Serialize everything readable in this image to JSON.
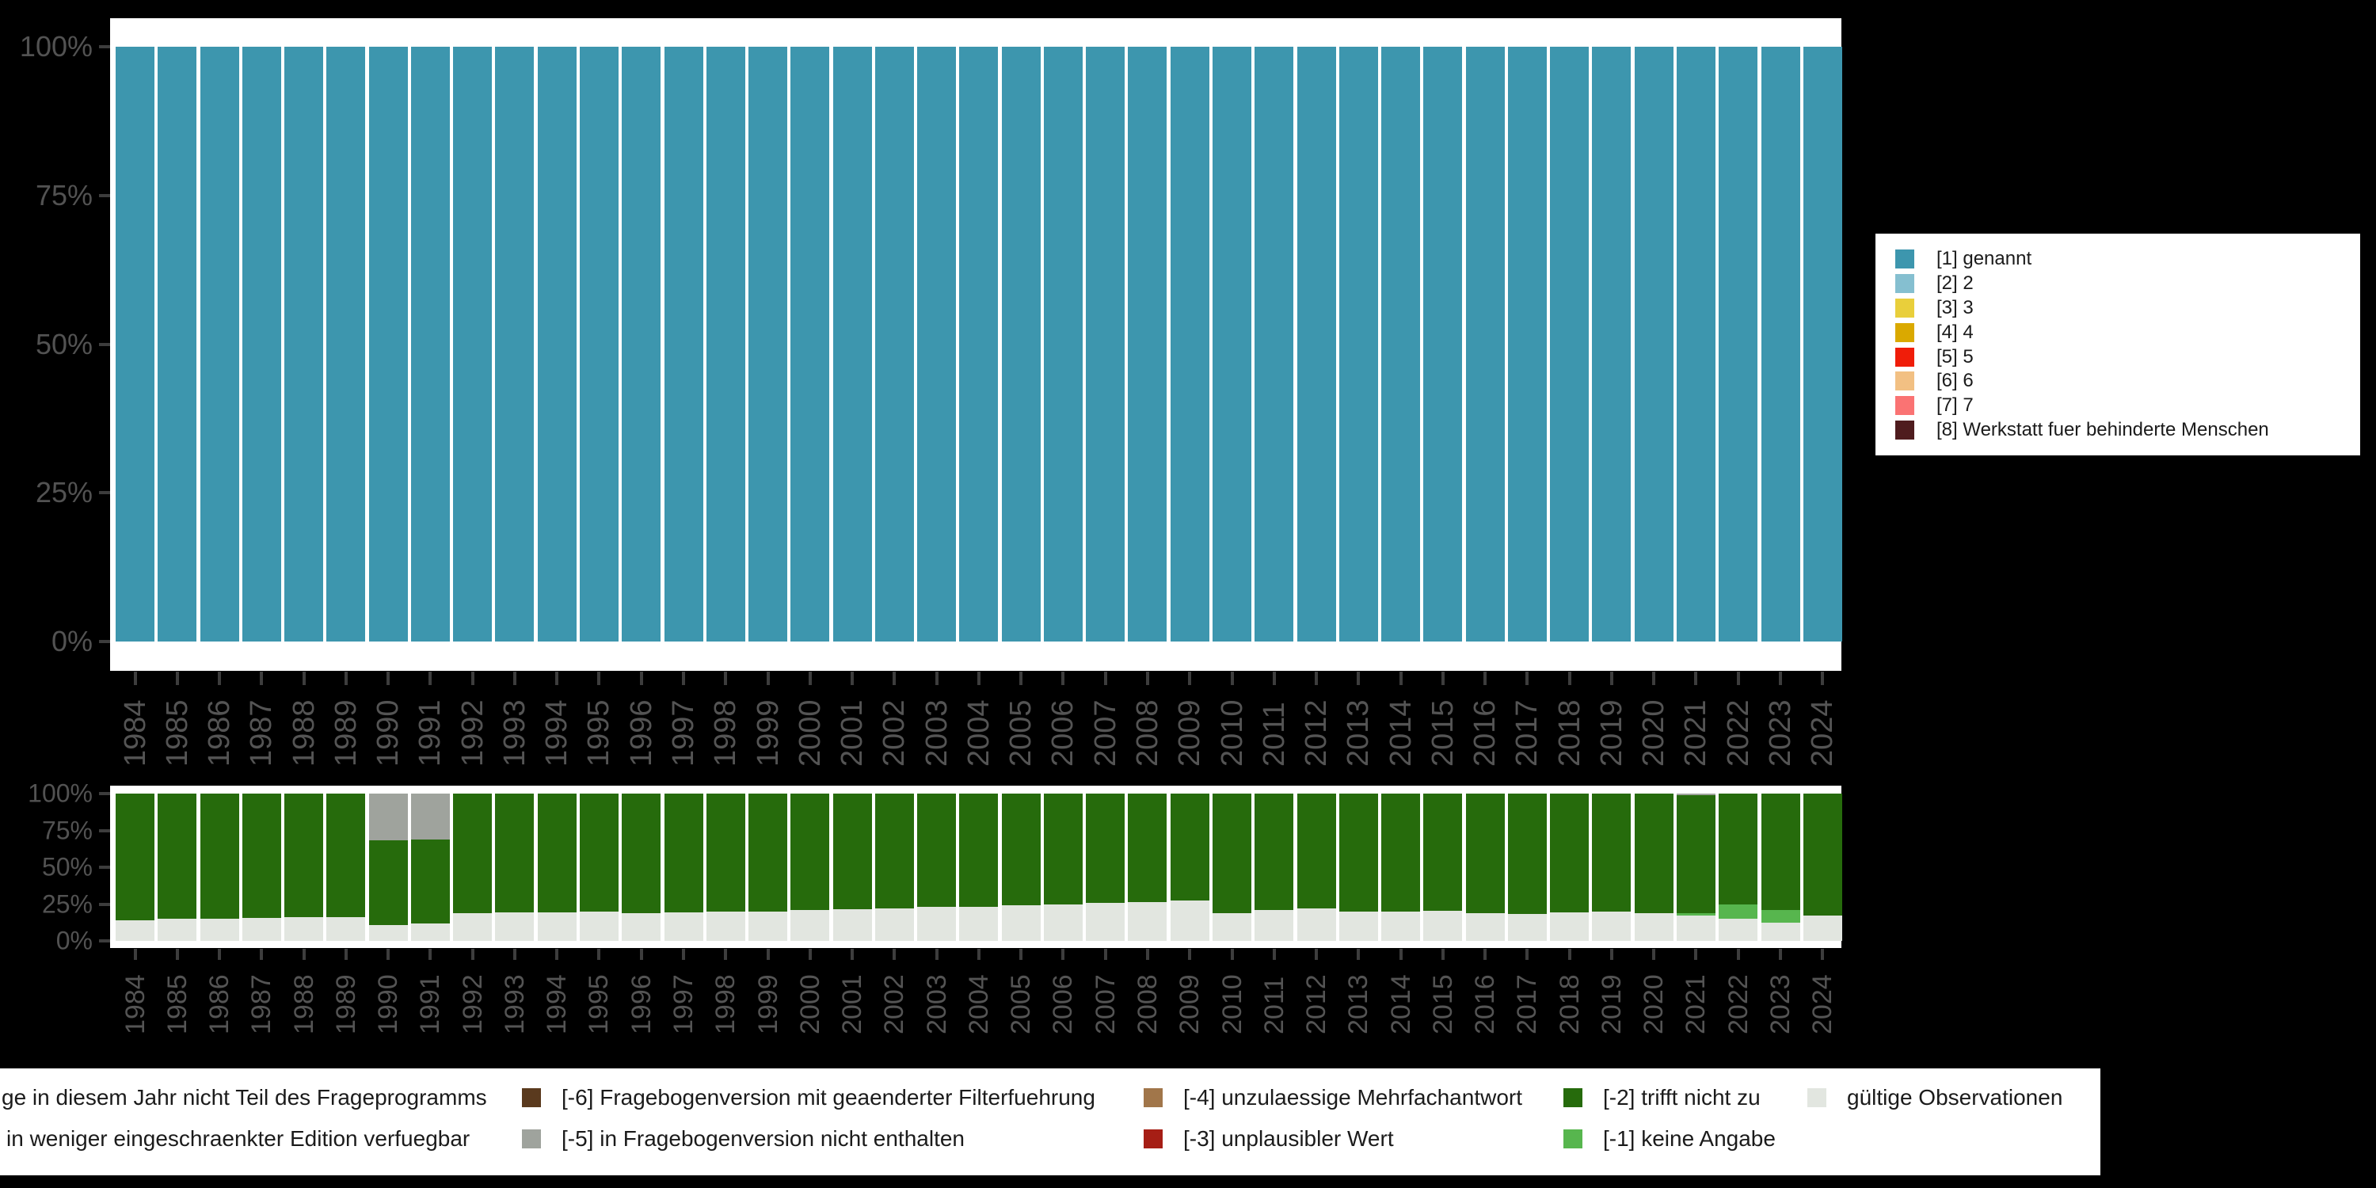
{
  "figure": {
    "background_color": "#000000",
    "panel_color": "#ffffff",
    "axis_text_color": "#525252",
    "tick_color": "#3d3d3d"
  },
  "chart_data": [
    {
      "type": "bar",
      "stacked": true,
      "title": "",
      "xlabel": "",
      "ylabel": "",
      "ylim": [
        0,
        100
      ],
      "grid": false,
      "legend_position": "right",
      "yticks": [
        "0%",
        "25%",
        "50%",
        "75%",
        "100%"
      ],
      "ytick_values": [
        0,
        25,
        50,
        75,
        100
      ],
      "categories": [
        "1984",
        "1985",
        "1986",
        "1987",
        "1988",
        "1989",
        "1990",
        "1991",
        "1992",
        "1993",
        "1994",
        "1995",
        "1996",
        "1997",
        "1998",
        "1999",
        "2000",
        "2001",
        "2002",
        "2003",
        "2004",
        "2005",
        "2006",
        "2007",
        "2008",
        "2009",
        "2010",
        "2011",
        "2012",
        "2013",
        "2014",
        "2015",
        "2016",
        "2017",
        "2018",
        "2019",
        "2020",
        "2021",
        "2022",
        "2023",
        "2024"
      ],
      "series": [
        {
          "name": "[1] genannt",
          "color": "#3d96ae",
          "values": [
            100,
            100,
            100,
            100,
            100,
            100,
            100,
            100,
            100,
            100,
            100,
            100,
            100,
            100,
            100,
            100,
            100,
            100,
            100,
            100,
            100,
            100,
            100,
            100,
            100,
            100,
            100,
            100,
            100,
            100,
            100,
            100,
            100,
            100,
            100,
            100,
            100,
            100,
            100,
            100,
            100
          ]
        }
      ]
    },
    {
      "type": "bar",
      "stacked": true,
      "title": "",
      "xlabel": "",
      "ylabel": "",
      "ylim": [
        0,
        100
      ],
      "grid": false,
      "legend_position": "bottom",
      "yticks": [
        "0%",
        "25%",
        "50%",
        "75%",
        "100%"
      ],
      "ytick_values": [
        0,
        25,
        50,
        75,
        100
      ],
      "categories": [
        "1984",
        "1985",
        "1986",
        "1987",
        "1988",
        "1989",
        "1990",
        "1991",
        "1992",
        "1993",
        "1994",
        "1995",
        "1996",
        "1997",
        "1998",
        "1999",
        "2000",
        "2001",
        "2002",
        "2003",
        "2004",
        "2005",
        "2006",
        "2007",
        "2008",
        "2009",
        "2010",
        "2011",
        "2012",
        "2013",
        "2014",
        "2015",
        "2016",
        "2017",
        "2018",
        "2019",
        "2020",
        "2021",
        "2022",
        "2023",
        "2024"
      ],
      "series": [
        {
          "name": "gültige Observationen",
          "color": "#e2e6e0",
          "values": [
            14,
            15,
            15,
            15.5,
            16,
            16,
            11,
            12,
            19,
            19.5,
            19.5,
            20,
            19,
            19.5,
            20,
            20,
            21,
            21.5,
            22,
            23,
            23,
            24,
            25,
            26,
            26.5,
            27.5,
            19,
            21,
            22,
            20,
            20,
            20.5,
            19,
            18.5,
            19.5,
            20,
            19,
            17,
            15,
            12.5,
            17
          ]
        },
        {
          "name": "[-1] keine Angabe",
          "color": "#57b64e",
          "values": [
            0,
            0,
            0,
            0,
            0,
            0,
            0,
            0,
            0,
            0,
            0,
            0,
            0,
            0,
            0,
            0,
            0,
            0,
            0,
            0,
            0,
            0,
            0,
            0,
            0,
            0,
            0,
            0,
            0,
            0,
            0,
            0,
            0,
            0,
            0,
            0,
            0,
            2,
            10,
            8.5,
            0
          ]
        },
        {
          "name": "[-2] trifft nicht zu",
          "color": "#266b0c",
          "values": [
            86,
            85,
            85,
            84.5,
            84,
            84,
            57.5,
            57,
            81,
            80.5,
            80.5,
            80,
            81,
            80.5,
            80,
            80,
            79,
            78.5,
            78,
            77,
            77,
            76,
            75,
            74,
            73.5,
            72.5,
            81,
            79,
            78,
            80,
            80,
            79.5,
            81,
            81.5,
            80.5,
            80,
            81,
            80,
            75,
            79,
            83
          ]
        },
        {
          "name": "[-5] in Fragebogenversion nicht enthalten",
          "color": "#9fa39d",
          "values": [
            0,
            0,
            0,
            0,
            0,
            0,
            31.5,
            31,
            0,
            0,
            0,
            0,
            0,
            0,
            0,
            0,
            0,
            0,
            0,
            0,
            0,
            0,
            0,
            0,
            0,
            0,
            0,
            0,
            0,
            0,
            0,
            0,
            0,
            0,
            0,
            0,
            0,
            1,
            0,
            0,
            0
          ]
        }
      ]
    }
  ],
  "legend_right": {
    "items": [
      {
        "label": "[1] genannt",
        "color": "#3d96ae"
      },
      {
        "label": "[2] 2",
        "color": "#85bfd0"
      },
      {
        "label": "[3] 3",
        "color": "#e9cf3b"
      },
      {
        "label": "[4] 4",
        "color": "#daa900"
      },
      {
        "label": "[5] 5",
        "color": "#f01d09"
      },
      {
        "label": "[6] 6",
        "color": "#f2c083"
      },
      {
        "label": "[7] 7",
        "color": "#fa7373"
      },
      {
        "label": "[8] Werkstatt fuer behinderte Menschen",
        "color": "#4f1c1e"
      }
    ]
  },
  "legend_bottom": {
    "rows": [
      [
        {
          "label": "ge in diesem Jahr nicht Teil des Frageprogramms",
          "color": null,
          "label_x": 2
        },
        {
          "label": "[-6] Fragebogenversion mit geaenderter Filterfuehrung",
          "color": "#5a3a1e",
          "swatch_x": 659,
          "label_x": 709
        },
        {
          "label": "[-4] unzulaessige Mehrfachantwort",
          "color": "#a1764a",
          "swatch_x": 1444,
          "label_x": 1494
        },
        {
          "label": "[-2] trifft nicht zu",
          "color": "#266b0c",
          "swatch_x": 1974,
          "label_x": 2024
        },
        {
          "label": "gültige Observationen",
          "color": "#e2e6e0",
          "swatch_x": 2282,
          "label_x": 2332
        }
      ],
      [
        {
          "label": "in weniger eingeschraenkter Edition verfuegbar",
          "color": null,
          "label_x": 8
        },
        {
          "label": "[-5] in Fragebogenversion nicht enthalten",
          "color": "#9fa39d",
          "swatch_x": 659,
          "label_x": 709
        },
        {
          "label": "[-3] unplausibler Wert",
          "color": "#a61e15",
          "swatch_x": 1444,
          "label_x": 1494
        },
        {
          "label": "[-1] keine Angabe",
          "color": "#57b64e",
          "swatch_x": 1974,
          "label_x": 2024
        }
      ]
    ]
  }
}
